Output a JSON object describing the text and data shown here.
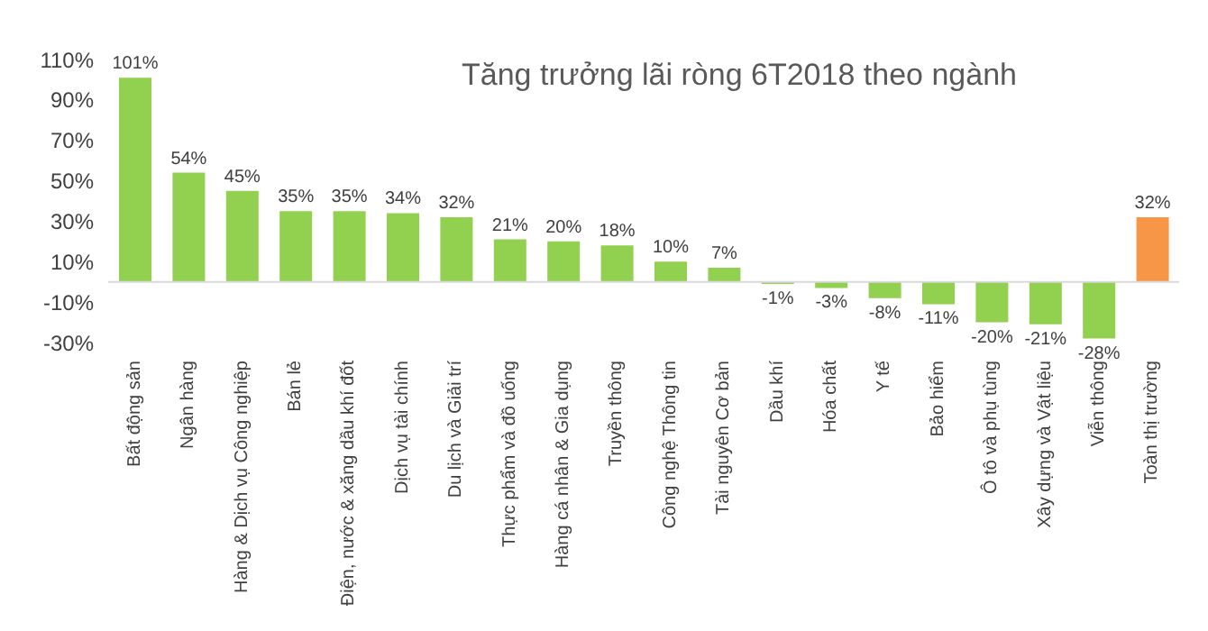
{
  "chart_data": {
    "type": "bar",
    "title": "Tăng trưởng lãi ròng 6T2018 theo ngành",
    "categories": [
      "Bất động sản",
      "Ngân hàng",
      "Hàng & Dịch vụ Công nghiệp",
      "Bán lẻ",
      "Điện, nước & xăng dầu khí đốt",
      "Dịch vụ tài chính",
      "Du lịch và Giải trí",
      "Thực phẩm và đồ uống",
      "Hàng cá nhân & Gia dụng",
      "Truyền thông",
      "Công nghệ Thông tin",
      "Tài nguyên Cơ bản",
      "Dầu khí",
      "Hóa chất",
      "Y tế",
      "Bảo hiểm",
      "Ô tô và phụ tùng",
      "Xây dựng và Vật liệu",
      "Viễn thông",
      "Toàn thị trường"
    ],
    "values": [
      101,
      54,
      45,
      35,
      35,
      34,
      32,
      21,
      20,
      18,
      10,
      7,
      -1,
      -3,
      -8,
      -11,
      -20,
      -21,
      -28,
      32
    ],
    "value_labels": [
      "101%",
      "54%",
      "45%",
      "35%",
      "35%",
      "34%",
      "32%",
      "21%",
      "20%",
      "18%",
      "10%",
      "7%",
      "-1%",
      "-3%",
      "-8%",
      "-11%",
      "-20%",
      "-21%",
      "-28%",
      "32%"
    ],
    "colors": [
      "#92d050",
      "#92d050",
      "#92d050",
      "#92d050",
      "#92d050",
      "#92d050",
      "#92d050",
      "#92d050",
      "#92d050",
      "#92d050",
      "#92d050",
      "#92d050",
      "#92d050",
      "#92d050",
      "#92d050",
      "#92d050",
      "#92d050",
      "#92d050",
      "#92d050",
      "#f79646"
    ],
    "ylim": [
      -30,
      110
    ],
    "yticks": [
      {
        "value": -30,
        "label": "-30%"
      },
      {
        "value": -10,
        "label": "-10%"
      },
      {
        "value": 10,
        "label": "10%"
      },
      {
        "value": 30,
        "label": "30%"
      },
      {
        "value": 50,
        "label": "50%"
      },
      {
        "value": 70,
        "label": "70%"
      },
      {
        "value": 90,
        "label": "90%"
      },
      {
        "value": 110,
        "label": "110%"
      }
    ],
    "grid": false,
    "legend": false
  }
}
